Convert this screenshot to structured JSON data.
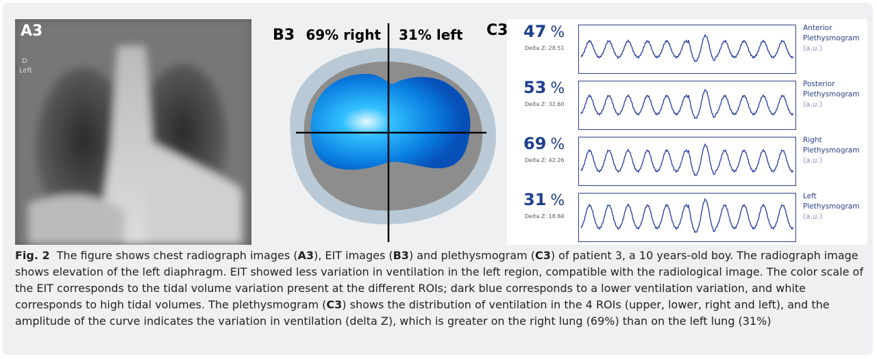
{
  "panels": {
    "a": {
      "label": "A3",
      "marker": [
        "D",
        "Left"
      ]
    },
    "b": {
      "label": "B3",
      "right": "69% right",
      "left": "31% left"
    },
    "c": {
      "label": "C3",
      "rows": [
        {
          "percent": "47",
          "unit": "%",
          "delta": "Delta Z: 28.51",
          "title": [
            "Anterior",
            "Plethysmogram"
          ],
          "unit_label": "(a.u.)"
        },
        {
          "percent": "53",
          "unit": "%",
          "delta": "Delta Z: 32.60",
          "title": [
            "Posterior",
            "Plethysmogram"
          ],
          "unit_label": "(a.u.)"
        },
        {
          "percent": "69",
          "unit": "%",
          "delta": "Delta Z: 42.26",
          "title": [
            "Right",
            "Plethysmogram"
          ],
          "unit_label": "(a.u.)"
        },
        {
          "percent": "31",
          "unit": "%",
          "delta": "Delta Z: 18.84",
          "title": [
            "Left",
            "Plethysmogram"
          ],
          "unit_label": "(a.u.)"
        }
      ]
    }
  },
  "caption": {
    "label": "Fig. 2",
    "runs": [
      "The figure shows chest radiograph images (",
      "A3",
      "), EIT images (",
      "B3",
      ") and plethysmogram (",
      "C3",
      ") of patient 3, a 10 years-old boy. The radiograph image shows elevation of the left diaphragm. EIT showed less variation in ventilation in the left region, compatible with the radiological image. The color scale of the EIT corresponds to the tidal volume variation present at the different ROIs; dark blue corresponds to a lower ventilation variation, and white corresponds to high tidal volumes. The plethysmogram (",
      "C3",
      ") shows the distribution of ventilation in the 4 ROIs (upper, lower, right and left), and the amplitude of the curve indicates the variation in ventilation (delta Z), which is greater on the right lung (69%) than on the left lung (31%)"
    ]
  }
}
